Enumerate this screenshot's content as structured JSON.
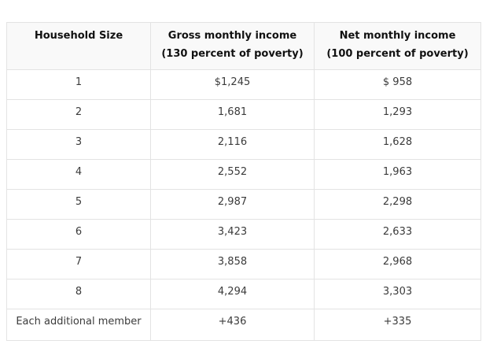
{
  "table": {
    "headers": [
      {
        "line1": "Household Size",
        "line2": ""
      },
      {
        "line1": "Gross monthly income",
        "line2": "(130 percent of poverty)"
      },
      {
        "line1": "Net monthly income",
        "line2": "(100 percent of poverty)"
      }
    ],
    "rows": [
      {
        "size": "1",
        "gross": "$1,245",
        "net": "$ 958"
      },
      {
        "size": "2",
        "gross": "1,681",
        "net": "1,293"
      },
      {
        "size": "3",
        "gross": "2,116",
        "net": "1,628"
      },
      {
        "size": "4",
        "gross": "2,552",
        "net": "1,963"
      },
      {
        "size": "5",
        "gross": "2,987",
        "net": "2,298"
      },
      {
        "size": "6",
        "gross": "3,423",
        "net": "2,633"
      },
      {
        "size": "7",
        "gross": "3,858",
        "net": "2,968"
      },
      {
        "size": "8",
        "gross": "4,294",
        "net": "3,303"
      },
      {
        "size": "Each additional member",
        "gross": "+436",
        "net": "+335"
      }
    ]
  },
  "colors": {
    "page_background": "#ffffff",
    "header_background": "#f9f9f9",
    "border": "#e3e3e3",
    "header_text": "#111111",
    "body_text": "#3b3b3b"
  }
}
